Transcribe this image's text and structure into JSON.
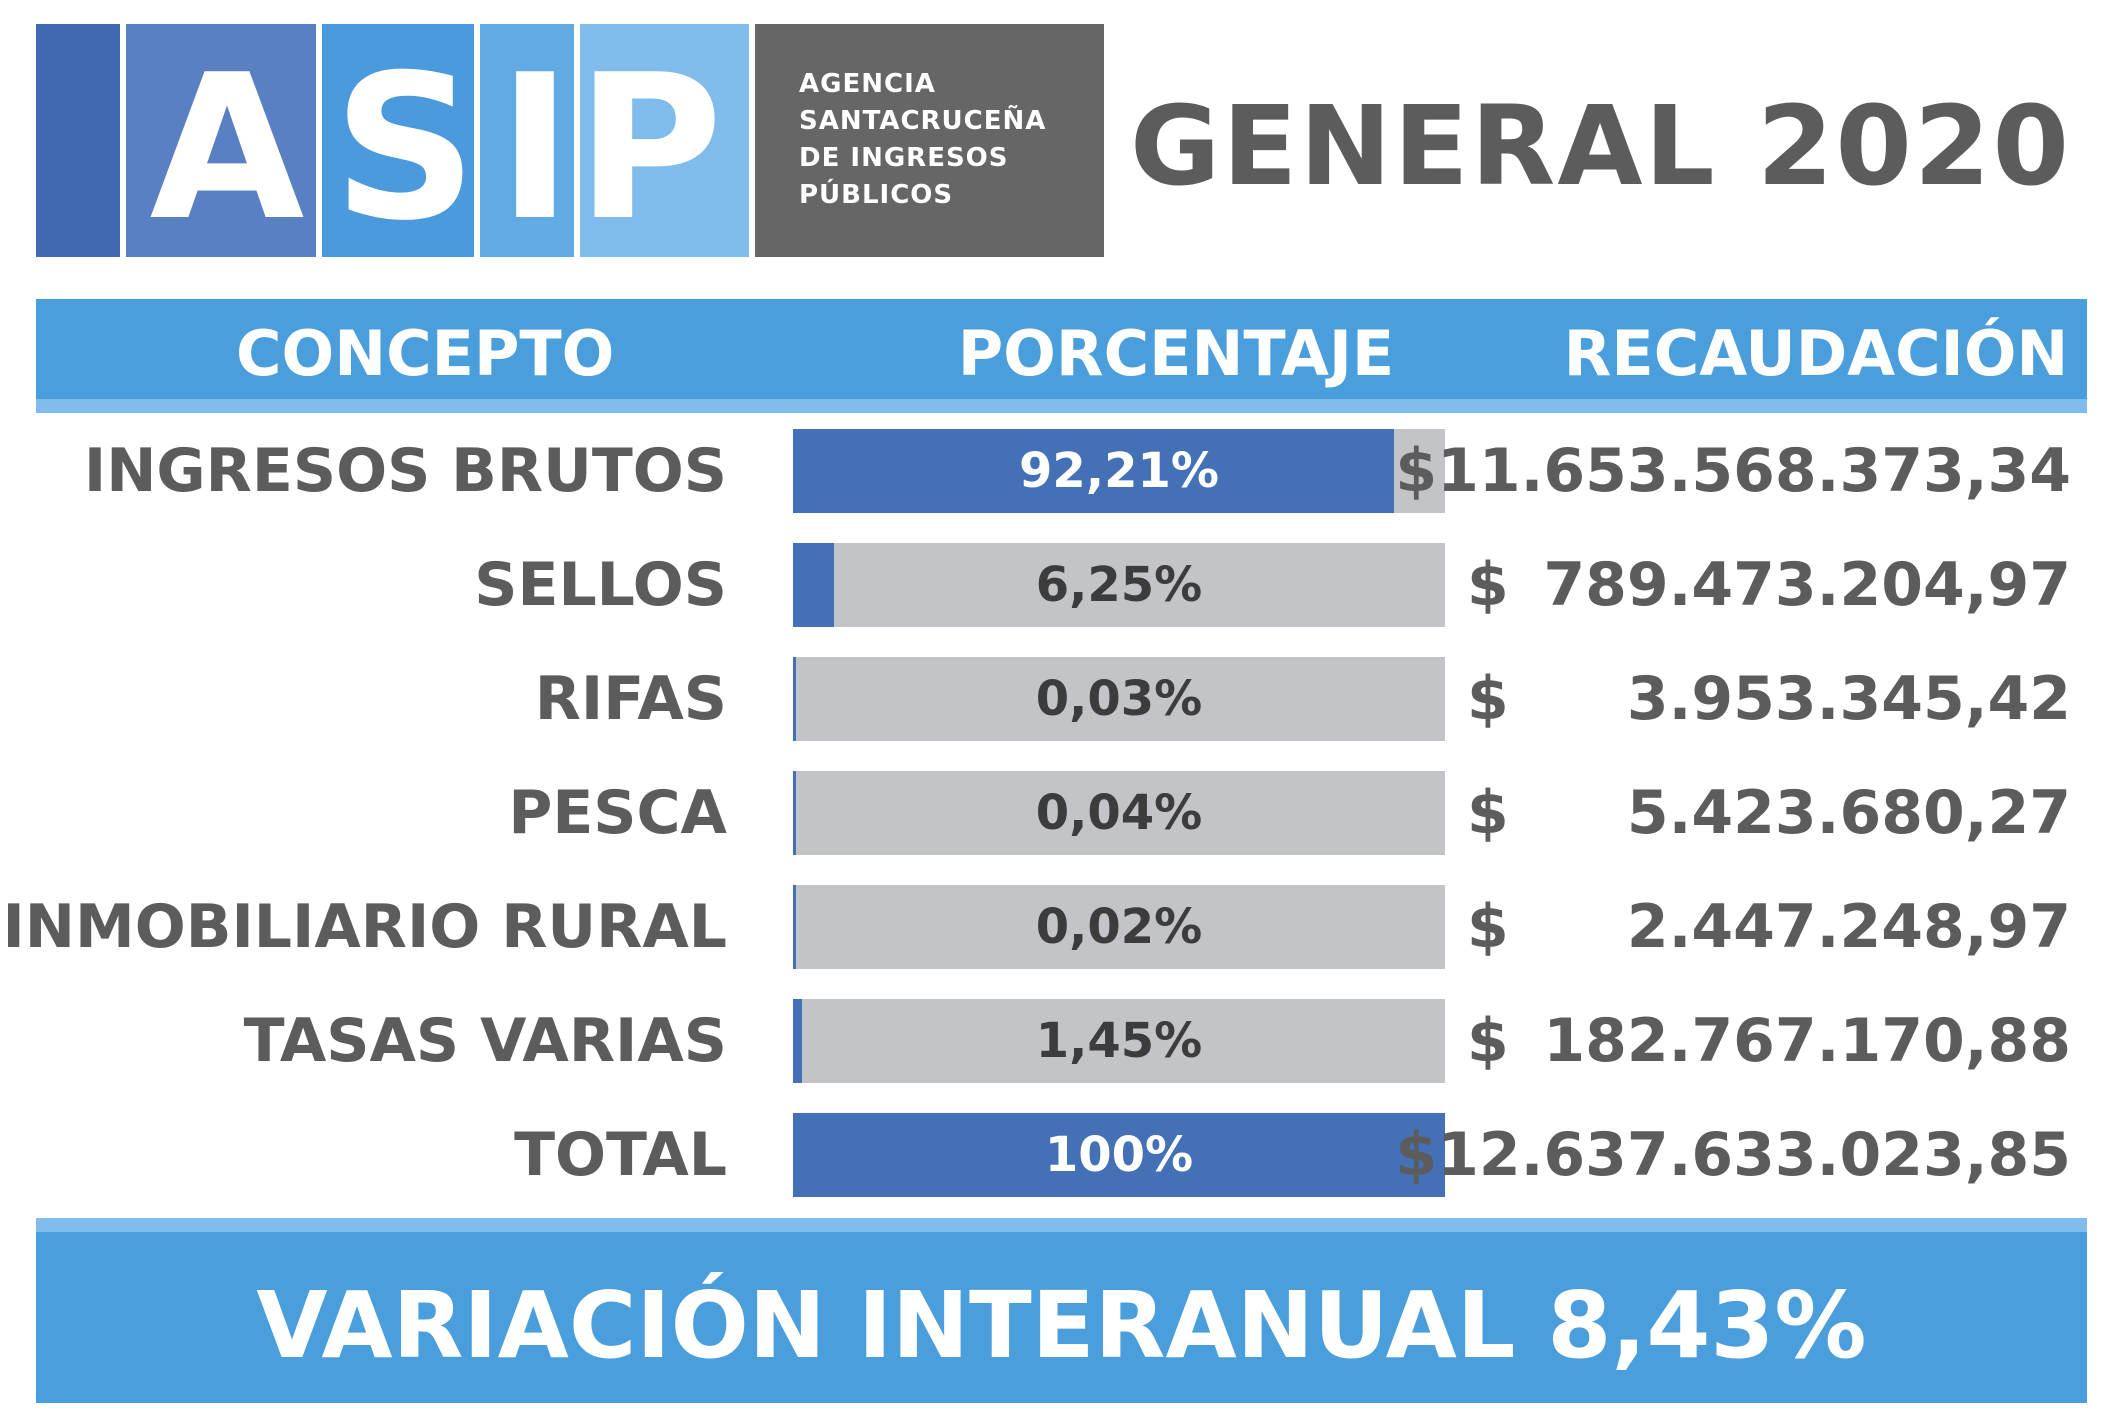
{
  "logo": {
    "letters": [
      "A",
      "S",
      "I",
      "P"
    ],
    "agency_lines": [
      "AGENCIA",
      "SANTACRUCEÑA",
      "DE INGRESOS",
      "PÚBLICOS"
    ]
  },
  "title": "GENERAL 2020",
  "table": {
    "headers": [
      "CONCEPTO",
      "PORCENTAJE",
      "RECAUDACIÓN"
    ],
    "rows": [
      {
        "concept": "INGRESOS BRUTOS",
        "percent_label": "92,21%",
        "percent": 92.21,
        "currency": "",
        "amount": "$11.653.568.373,34"
      },
      {
        "concept": "SELLOS",
        "percent_label": "6,25%",
        "percent": 6.25,
        "currency": "$",
        "amount": "789.473.204,97"
      },
      {
        "concept": "RIFAS",
        "percent_label": "0,03%",
        "percent": 0.03,
        "currency": "$",
        "amount": "3.953.345,42"
      },
      {
        "concept": "PESCA",
        "percent_label": "0,04%",
        "percent": 0.04,
        "currency": "$",
        "amount": "5.423.680,27"
      },
      {
        "concept": "INMOBILIARIO RURAL",
        "percent_label": "0,02%",
        "percent": 0.02,
        "currency": "$",
        "amount": "2.447.248,97"
      },
      {
        "concept": "TASAS VARIAS",
        "percent_label": "1,45%",
        "percent": 1.45,
        "currency": "$",
        "amount": "182.767.170,88"
      },
      {
        "concept": "TOTAL",
        "percent_label": "100%",
        "percent": 100,
        "currency": "",
        "amount": "$12.637.633.023,85"
      }
    ]
  },
  "footer": "VARIACIÓN INTERANUAL 8,43%",
  "colors": {
    "bar_fill": "#4470b5",
    "bar_track": "#c3c4c8",
    "band": "#4a9edc",
    "band_accent": "#7fbceb",
    "text_dark": "#5c5c5c"
  }
}
